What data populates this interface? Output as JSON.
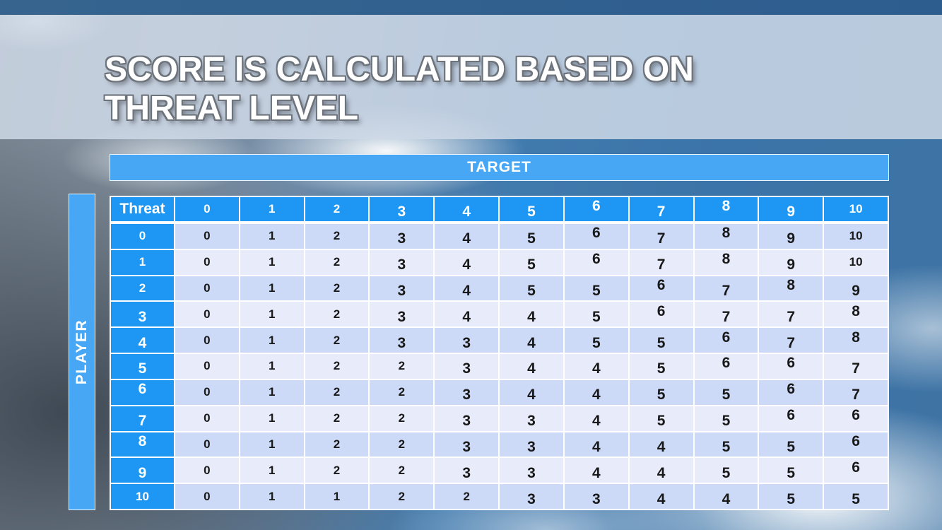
{
  "slide": {
    "title_line1": "SCORE IS CALCULATED BASED ON",
    "title_line2": "THREAT LEVEL"
  },
  "axis_banners": {
    "target_label": "TARGET",
    "player_label": "PLAYER"
  },
  "score_table": {
    "corner_label": "Threat",
    "column_headers": [
      "0",
      "1",
      "2",
      "3",
      "4",
      "5",
      "6",
      "7",
      "8",
      "9",
      "10"
    ],
    "rows": [
      {
        "player_threat": "0",
        "scores": [
          "0",
          "1",
          "2",
          "3",
          "4",
          "5",
          "6",
          "7",
          "8",
          "9",
          "10"
        ]
      },
      {
        "player_threat": "1",
        "scores": [
          "0",
          "1",
          "2",
          "3",
          "4",
          "5",
          "6",
          "7",
          "8",
          "9",
          "10"
        ]
      },
      {
        "player_threat": "2",
        "scores": [
          "0",
          "1",
          "2",
          "3",
          "4",
          "5",
          "5",
          "6",
          "7",
          "8",
          "9"
        ]
      },
      {
        "player_threat": "3",
        "scores": [
          "0",
          "1",
          "2",
          "3",
          "4",
          "4",
          "5",
          "6",
          "7",
          "7",
          "8"
        ]
      },
      {
        "player_threat": "4",
        "scores": [
          "0",
          "1",
          "2",
          "3",
          "3",
          "4",
          "5",
          "5",
          "6",
          "7",
          "8"
        ]
      },
      {
        "player_threat": "5",
        "scores": [
          "0",
          "1",
          "2",
          "2",
          "3",
          "4",
          "4",
          "5",
          "6",
          "6",
          "7"
        ]
      },
      {
        "player_threat": "6",
        "scores": [
          "0",
          "1",
          "2",
          "2",
          "3",
          "4",
          "4",
          "5",
          "5",
          "6",
          "7"
        ]
      },
      {
        "player_threat": "7",
        "scores": [
          "0",
          "1",
          "2",
          "2",
          "3",
          "3",
          "4",
          "5",
          "5",
          "6",
          "6"
        ]
      },
      {
        "player_threat": "8",
        "scores": [
          "0",
          "1",
          "2",
          "2",
          "3",
          "3",
          "4",
          "4",
          "5",
          "5",
          "6"
        ]
      },
      {
        "player_threat": "9",
        "scores": [
          "0",
          "1",
          "2",
          "2",
          "3",
          "3",
          "4",
          "4",
          "5",
          "5",
          "6"
        ]
      },
      {
        "player_threat": "10",
        "scores": [
          "0",
          "1",
          "1",
          "2",
          "2",
          "3",
          "3",
          "4",
          "4",
          "5",
          "5"
        ]
      }
    ]
  },
  "colors": {
    "header_blue": "#1d97f3",
    "banner_blue": "#47a7f5",
    "row_band_dark": "#ccdaf7",
    "row_band_light": "#e8ecfa",
    "top_strip_blue": "#31608f",
    "title_text": "#ffffff",
    "cell_text": "#191919"
  }
}
